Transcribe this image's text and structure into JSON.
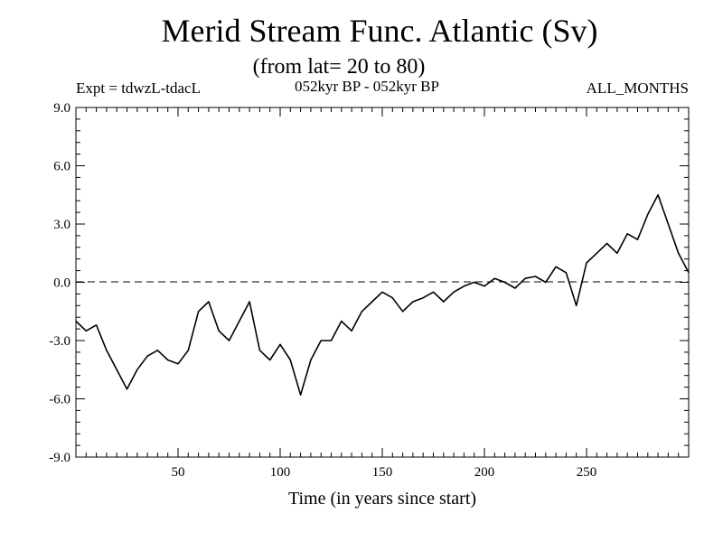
{
  "chart_data": {
    "type": "line",
    "title": "Merid Stream Func. Atlantic (Sv)",
    "subtitle": "(from lat= 20 to 80)",
    "header_left": "Expt = tdwzL-tdacL",
    "header_center": "052kyr BP - 052kyr BP",
    "header_right": "ALL_MONTHS",
    "xlabel": "Time (in years since start)",
    "ylabel": "",
    "xlim": [
      0,
      300
    ],
    "ylim": [
      -9.0,
      9.0
    ],
    "xticks": [
      50,
      100,
      150,
      200,
      250
    ],
    "xtick_labels": [
      "50",
      "100",
      "150",
      "200",
      "250"
    ],
    "yticks": [
      -9,
      -6,
      -3,
      0,
      3,
      6,
      9
    ],
    "ytick_labels": [
      "-9.0",
      "-6.0",
      "-3.0",
      "0.0",
      "3.0",
      "6.0",
      "9.0"
    ],
    "zero_line": "dashed",
    "line_color": "#000000",
    "series": [
      {
        "name": "Merid Stream Func. Atlantic",
        "x": [
          0,
          5,
          10,
          15,
          20,
          25,
          30,
          35,
          40,
          45,
          50,
          55,
          60,
          65,
          70,
          75,
          80,
          85,
          90,
          95,
          100,
          105,
          110,
          115,
          120,
          125,
          130,
          135,
          140,
          145,
          150,
          155,
          160,
          165,
          170,
          175,
          180,
          185,
          190,
          195,
          200,
          205,
          210,
          215,
          220,
          225,
          230,
          235,
          240,
          245,
          250,
          255,
          260,
          265,
          270,
          275,
          280,
          285,
          290,
          295,
          300
        ],
        "values": [
          -2.0,
          -2.5,
          -2.2,
          -3.5,
          -4.5,
          -5.5,
          -4.5,
          -3.8,
          -3.5,
          -4.0,
          -4.2,
          -3.5,
          -1.5,
          -1.0,
          -2.5,
          -3.0,
          -2.0,
          -1.0,
          -3.5,
          -4.0,
          -3.2,
          -4.0,
          -5.8,
          -4.0,
          -3.0,
          -3.0,
          -2.0,
          -2.5,
          -1.5,
          -1.0,
          -0.5,
          -0.8,
          -1.5,
          -1.0,
          -0.8,
          -0.5,
          -1.0,
          -0.5,
          -0.2,
          0.0,
          -0.2,
          0.2,
          0.0,
          -0.3,
          0.2,
          0.3,
          0.0,
          0.8,
          0.5,
          -1.2,
          1.0,
          1.5,
          2.0,
          1.5,
          2.5,
          2.2,
          3.5,
          4.5,
          3.0,
          1.5,
          0.5
        ]
      }
    ]
  }
}
